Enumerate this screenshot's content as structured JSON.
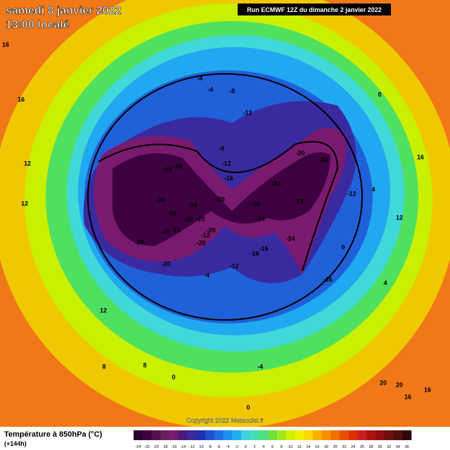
{
  "header": {
    "title": "samedi 8 janvier 2022",
    "subtitle": "13:00 localé",
    "run": "Run ECMWF 12Z du dimanche 2 janvier 2022"
  },
  "footer": {
    "title": "Température à 850hPa (°C)",
    "lead": "(+144h)",
    "copyright": "Copyright 2022 Meteociel.fr"
  },
  "colorbar": {
    "ticks": [
      -24,
      -22,
      -20,
      -18,
      -16,
      -14,
      -12,
      -10,
      -8,
      -6,
      -4,
      -2,
      0,
      2,
      4,
      6,
      8,
      10,
      12,
      14,
      16,
      18,
      20,
      22,
      24,
      26,
      28,
      30,
      32,
      34,
      36
    ],
    "colors": [
      "#2a0030",
      "#3d0040",
      "#55104f",
      "#6a2060",
      "#7a1a6e",
      "#4a1a80",
      "#3a2a9a",
      "#2030b0",
      "#2050d0",
      "#2070e0",
      "#2090f0",
      "#20b0f0",
      "#40d0e0",
      "#40e0b0",
      "#50e080",
      "#70e040",
      "#a0e820",
      "#d0f000",
      "#f0f000",
      "#f8d800",
      "#f8b000",
      "#f89000",
      "#f07000",
      "#e85000",
      "#e03000",
      "#c82020",
      "#b01010",
      "#901010",
      "#701010",
      "#501010",
      "#300808"
    ]
  },
  "map": {
    "labels": [
      -28,
      -28,
      -24,
      -16,
      -16,
      -20,
      -20,
      -12,
      -20,
      -16,
      -20,
      -28,
      -20,
      -20,
      -20,
      -28,
      -24,
      -24,
      -24,
      -20,
      -24,
      -16,
      -12,
      -8,
      -12,
      -8,
      -4,
      -4,
      -12,
      -24,
      -16,
      -16,
      -12,
      -4,
      -16,
      0,
      0,
      4,
      12,
      8,
      8,
      0,
      -4,
      0,
      20,
      20,
      16,
      16,
      16,
      12,
      12,
      16,
      12,
      4,
      16
    ]
  }
}
